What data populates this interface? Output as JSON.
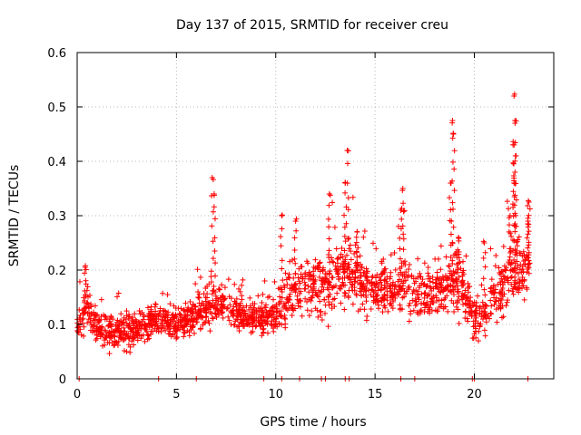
{
  "chart_data": {
    "type": "scatter",
    "title": "Day 137 of 2015, SRMTID for receiver creu",
    "xlabel": "GPS time / hours",
    "ylabel": "SRMTID / TECUs",
    "xlim": [
      0,
      24
    ],
    "ylim": [
      0,
      0.6
    ],
    "x_ticks": [
      0,
      5,
      10,
      15,
      20
    ],
    "x_tick_labels": [
      "0",
      "5",
      "10",
      "15",
      "20"
    ],
    "y_ticks": [
      0,
      0.1,
      0.2,
      0.3,
      0.4,
      0.5,
      0.6
    ],
    "y_tick_labels": [
      "0",
      "0.1",
      "0.2",
      "0.3",
      "0.4",
      "0.5",
      "0.6"
    ],
    "grid": true,
    "marker": "+",
    "series": [
      {
        "name": "SRMTID",
        "color": "#ff0000",
        "baseline_x": [
          0,
          0.5,
          1,
          2,
          3,
          4,
          5,
          6,
          6.5,
          7,
          7.5,
          8,
          9,
          10,
          10.5,
          11,
          11.5,
          12,
          12.5,
          13,
          13.5,
          14,
          14.5,
          15,
          15.5,
          16,
          16.5,
          17,
          17.5,
          18,
          18.5,
          19,
          19.5,
          20,
          20.5,
          21,
          21.5,
          22,
          22.5,
          22.8
        ],
        "baseline_y": [
          0.095,
          0.13,
          0.09,
          0.085,
          0.09,
          0.11,
          0.1,
          0.12,
          0.13,
          0.14,
          0.13,
          0.12,
          0.11,
          0.125,
          0.15,
          0.16,
          0.17,
          0.16,
          0.17,
          0.18,
          0.2,
          0.19,
          0.17,
          0.16,
          0.17,
          0.18,
          0.17,
          0.15,
          0.15,
          0.16,
          0.17,
          0.18,
          0.16,
          0.11,
          0.12,
          0.16,
          0.17,
          0.2,
          0.19,
          0.21
        ],
        "spread_y": [
          0.02,
          0.035,
          0.025,
          0.03,
          0.025,
          0.025,
          0.025,
          0.03,
          0.04,
          0.04,
          0.03,
          0.03,
          0.03,
          0.04,
          0.05,
          0.05,
          0.05,
          0.05,
          0.05,
          0.05,
          0.05,
          0.05,
          0.045,
          0.04,
          0.045,
          0.05,
          0.045,
          0.04,
          0.04,
          0.045,
          0.045,
          0.05,
          0.045,
          0.03,
          0.035,
          0.04,
          0.05,
          0.055,
          0.05,
          0.04
        ],
        "peaks": [
          {
            "x": 0.4,
            "y": 0.205
          },
          {
            "x": 6.8,
            "y": 0.37
          },
          {
            "x": 6.9,
            "y": 0.34
          },
          {
            "x": 10.3,
            "y": 0.3
          },
          {
            "x": 11.0,
            "y": 0.29
          },
          {
            "x": 12.7,
            "y": 0.34
          },
          {
            "x": 13.5,
            "y": 0.36
          },
          {
            "x": 13.6,
            "y": 0.42
          },
          {
            "x": 14.1,
            "y": 0.27
          },
          {
            "x": 16.4,
            "y": 0.35
          },
          {
            "x": 16.3,
            "y": 0.31
          },
          {
            "x": 18.9,
            "y": 0.475
          },
          {
            "x": 18.95,
            "y": 0.45
          },
          {
            "x": 18.8,
            "y": 0.36
          },
          {
            "x": 19.2,
            "y": 0.26
          },
          {
            "x": 20.5,
            "y": 0.25
          },
          {
            "x": 21.8,
            "y": 0.3
          },
          {
            "x": 22.0,
            "y": 0.52
          },
          {
            "x": 22.05,
            "y": 0.47
          },
          {
            "x": 22.0,
            "y": 0.43
          },
          {
            "x": 22.1,
            "y": 0.41
          },
          {
            "x": 22.0,
            "y": 0.36
          },
          {
            "x": 22.75,
            "y": 0.325
          },
          {
            "x": 22.7,
            "y": 0.29
          }
        ],
        "zero_points_x": [
          0.1,
          4.1,
          6.0,
          9.4,
          10.3,
          11.2,
          12.3,
          12.5,
          13.5,
          13.7,
          16.3,
          17.0,
          19.9,
          20.0,
          22.7
        ]
      }
    ]
  }
}
